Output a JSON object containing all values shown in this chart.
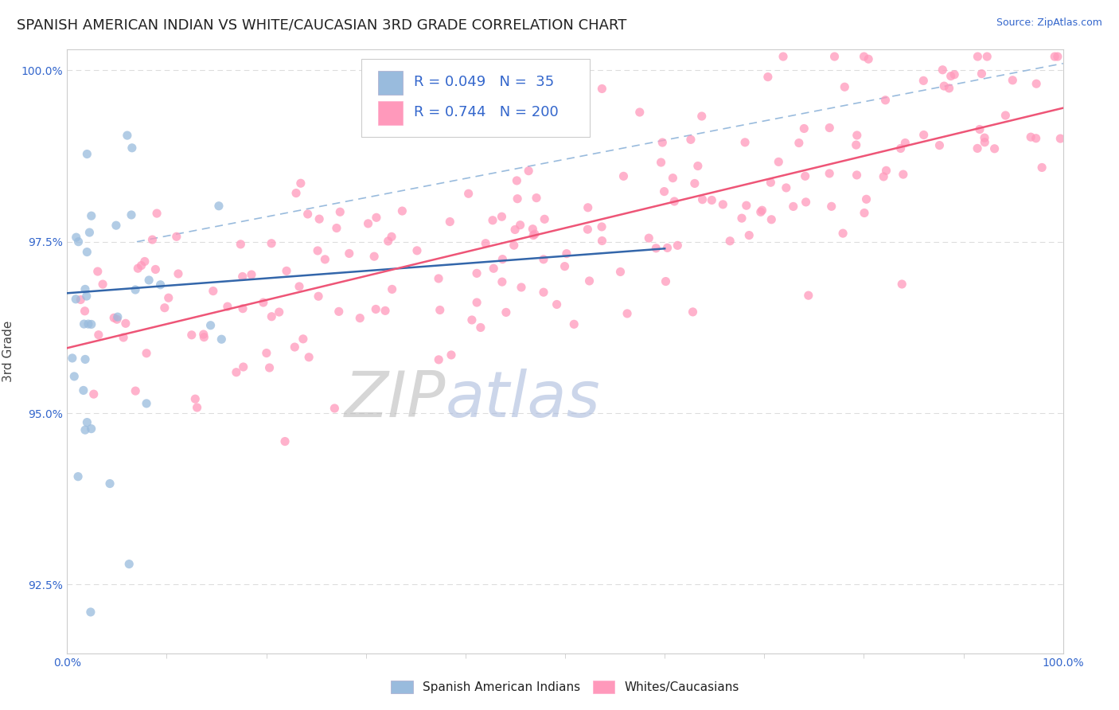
{
  "title": "SPANISH AMERICAN INDIAN VS WHITE/CAUCASIAN 3RD GRADE CORRELATION CHART",
  "source": "Source: ZipAtlas.com",
  "ylabel": "3rd Grade",
  "xlim": [
    0.0,
    1.0
  ],
  "ylim": [
    0.915,
    1.003
  ],
  "ytick_labels": [
    "92.5%",
    "95.0%",
    "97.5%",
    "100.0%"
  ],
  "ytick_vals": [
    0.925,
    0.95,
    0.975,
    1.0
  ],
  "xtick_labels": [
    "0.0%",
    "100.0%"
  ],
  "xtick_vals": [
    0.0,
    1.0
  ],
  "legend_R1": "0.049",
  "legend_N1": "35",
  "legend_R2": "0.744",
  "legend_N2": "200",
  "blue_color": "#99BBDD",
  "pink_color": "#FF99BB",
  "blue_line_color": "#3366AA",
  "pink_line_color": "#EE5577",
  "dashed_line_color": "#99BBDD",
  "label1": "Spanish American Indians",
  "label2": "Whites/Caucasians",
  "text_color": "#3366CC",
  "zip_color": "#CCCCCC",
  "atlas_color": "#AABBDD",
  "background_color": "#FFFFFF",
  "grid_color": "#DDDDDD",
  "title_fontsize": 13,
  "source_fontsize": 9,
  "blue_line_x": [
    0.0,
    0.6
  ],
  "blue_line_y": [
    0.9675,
    0.974
  ],
  "pink_line_x": [
    0.0,
    1.0
  ],
  "pink_line_y": [
    0.9595,
    0.9945
  ],
  "dashed_line_x": [
    0.07,
    1.0
  ],
  "dashed_line_y": [
    0.975,
    1.001
  ]
}
